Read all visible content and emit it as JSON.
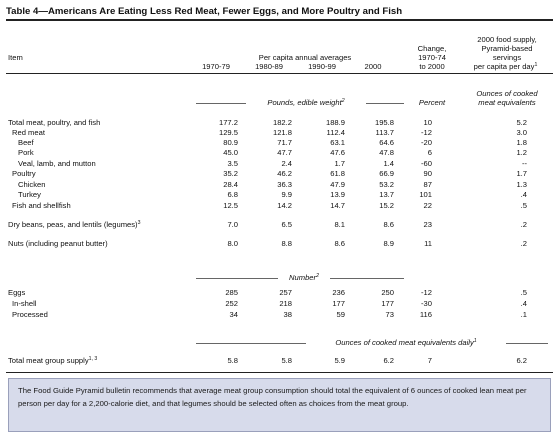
{
  "title": "Table 4—Americans Are Eating Less Red Meat, Fewer Eggs, and More Poultry and Fish",
  "headers": {
    "item": "Item",
    "group": "Per capita annual averages",
    "c1970": "1970-79",
    "c1980": "1980-89",
    "c1990": "1990-99",
    "c2000": "2000",
    "change_l1": "Change,",
    "change_l2": "1970-74",
    "change_l3": "to 2000",
    "supply_l1": "2000 food supply,",
    "supply_l2": "Pyramid-based",
    "supply_l3": "servings",
    "supply_l4": "per capita per day",
    "supply_l4_sup": "1"
  },
  "units": {
    "pounds": "Pounds, edible weight",
    "pounds_sup": "2",
    "percent": "Percent",
    "ounces_l1": "Ounces of cooked",
    "ounces_l2": "meat equivalents",
    "number": "Number",
    "number_sup": "2",
    "daily": "Ounces of cooked meat equivalents daily",
    "daily_sup": "1"
  },
  "rows": [
    {
      "label": "Total meat, poultry, and fish",
      "v": [
        "177.2",
        "182.2",
        "188.9",
        "195.8",
        "10",
        "5.2"
      ]
    },
    {
      "label": "Red meat",
      "v": [
        "129.5",
        "121.8",
        "112.4",
        "113.7",
        "-12",
        "3.0"
      ]
    },
    {
      "label": "Beef",
      "v": [
        "80.9",
        "71.7",
        "63.1",
        "64.6",
        "-20",
        "1.8"
      ]
    },
    {
      "label": "Pork",
      "v": [
        "45.0",
        "47.7",
        "47.6",
        "47.8",
        "6",
        "1.2"
      ]
    },
    {
      "label": "Veal, lamb, and mutton",
      "v": [
        "3.5",
        "2.4",
        "1.7",
        "1.4",
        "-60",
        "--"
      ]
    },
    {
      "label": "Poultry",
      "v": [
        "35.2",
        "46.2",
        "61.8",
        "66.9",
        "90",
        "1.7"
      ]
    },
    {
      "label": "Chicken",
      "v": [
        "28.4",
        "36.3",
        "47.9",
        "53.2",
        "87",
        "1.3"
      ]
    },
    {
      "label": "Turkey",
      "v": [
        "6.8",
        "9.9",
        "13.9",
        "13.7",
        "101",
        ".4"
      ]
    },
    {
      "label": "Fish and shellfish",
      "v": [
        "12.5",
        "14.2",
        "14.7",
        "15.2",
        "22",
        ".5"
      ]
    },
    {
      "label": "Dry beans, peas, and lentils (legumes)",
      "sup": "3",
      "v": [
        "7.0",
        "6.5",
        "8.1",
        "8.6",
        "23",
        ".2"
      ]
    },
    {
      "label": "Nuts (including peanut butter)",
      "v": [
        "8.0",
        "8.8",
        "8.6",
        "8.9",
        "11",
        ".2"
      ]
    },
    {
      "label": "Eggs",
      "v": [
        "285",
        "257",
        "236",
        "250",
        "-12",
        ".5"
      ]
    },
    {
      "label": "In-shell",
      "v": [
        "252",
        "218",
        "177",
        "177",
        "-30",
        ".4"
      ]
    },
    {
      "label": "Processed",
      "v": [
        "34",
        "38",
        "59",
        "73",
        "116",
        ".1"
      ]
    },
    {
      "label": "Total meat group supply",
      "sup": "1, 3",
      "v": [
        "5.8",
        "5.8",
        "5.9",
        "6.2",
        "7",
        "6.2"
      ]
    }
  ],
  "note": "The Food Guide Pyramid bulletin recommends that average meat group consumption should total the equivalent of 6 ounces of cooked lean meat per person per day for a 2,200-calorie diet, and that legumes should be selected often as choices from the meat group."
}
